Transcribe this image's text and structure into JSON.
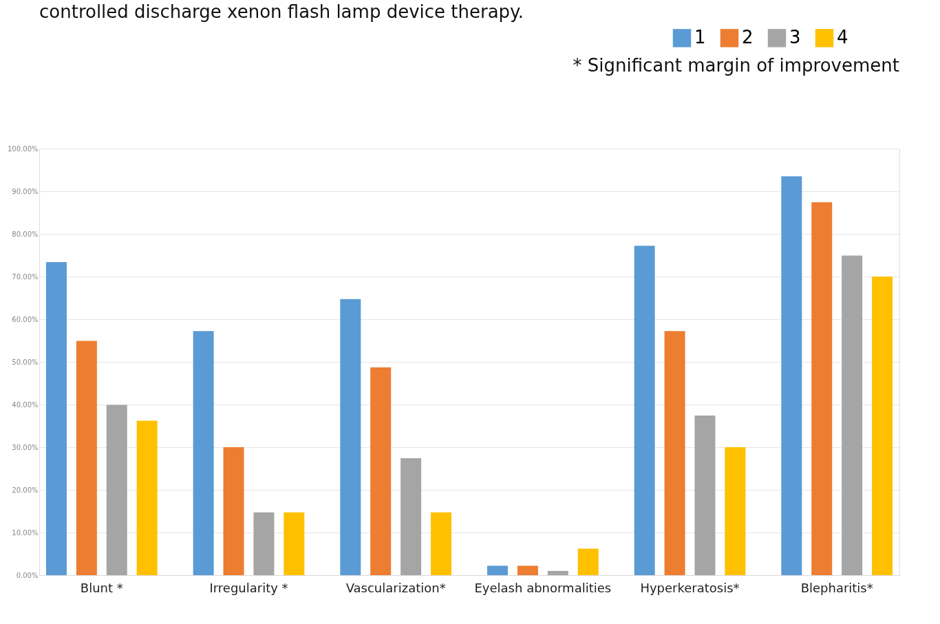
{
  "chart_data": {
    "type": "bar",
    "title": "controlled discharge xenon flash lamp device therapy.",
    "annotations": [
      "* Significant margin of improvement"
    ],
    "categories": [
      "Blunt *",
      "Irregularity *",
      "Vascularization*",
      "Eyelash abnormalities",
      "Hyperkeratosis*",
      "Blepharitis*"
    ],
    "series": [
      {
        "name": "1",
        "color": "#5b9bd5",
        "values": [
          73.4,
          57.2,
          64.7,
          2.2,
          77.2,
          93.5
        ]
      },
      {
        "name": "2",
        "color": "#ed7d31",
        "values": [
          54.9,
          30.0,
          48.7,
          2.2,
          57.2,
          87.4
        ]
      },
      {
        "name": "3",
        "color": "#a5a5a5",
        "values": [
          39.9,
          14.7,
          27.4,
          1.0,
          37.4,
          74.9
        ]
      },
      {
        "name": "4",
        "color": "#ffc000",
        "values": [
          36.2,
          14.7,
          14.7,
          6.2,
          30.0,
          70.0
        ]
      }
    ],
    "ylim": [
      0,
      100
    ],
    "yticks": [
      {
        "value": 0,
        "label": "0.00%"
      },
      {
        "value": 10,
        "label": "10.00%"
      },
      {
        "value": 20,
        "label": "20.00%"
      },
      {
        "value": 30,
        "label": "30.00%"
      },
      {
        "value": 40,
        "label": "40.00%"
      },
      {
        "value": 50,
        "label": "50.00%"
      },
      {
        "value": 60,
        "label": "60.00%"
      },
      {
        "value": 70,
        "label": "70.00%"
      },
      {
        "value": 80,
        "label": "80.00%"
      },
      {
        "value": 90,
        "label": "90.00%"
      },
      {
        "value": 100,
        "label": "100.00%"
      }
    ],
    "grid": "y",
    "legend": "top right"
  }
}
